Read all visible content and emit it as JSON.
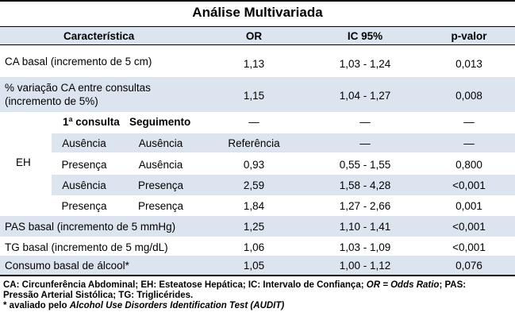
{
  "title": "Análise Multivariada",
  "headers": {
    "characteristic": "Característica",
    "or": "OR",
    "ic": "IC 95%",
    "pvalue": "p-valor"
  },
  "rows": {
    "ca_basal": {
      "label": "CA basal (incremento de 5 cm)",
      "or": "1,13",
      "ic": "1,03 - 1,24",
      "p": "0,013"
    },
    "ca_var": {
      "label_line1": "% variação CA entre consultas",
      "label_line2": "(incremento de 5%)",
      "or": "1,15",
      "ic": "1,04 - 1,27",
      "p": "0,008"
    },
    "eh": {
      "label": "EH",
      "sub_header_first": "1ª consulta",
      "sub_header_follow": "Seguimento",
      "header_or": "—",
      "header_ic": "—",
      "header_p": "—",
      "items": [
        {
          "first": "Ausência",
          "follow": "Ausência",
          "or": "Referência",
          "ic": "—",
          "p": "—"
        },
        {
          "first": "Presença",
          "follow": "Ausência",
          "or": "0,93",
          "ic": "0,55 - 1,55",
          "p": "0,800"
        },
        {
          "first": "Ausência",
          "follow": "Presença",
          "or": "2,59",
          "ic": "1,58 - 4,28",
          "p": "<0,001"
        },
        {
          "first": "Presença",
          "follow": "Presença",
          "or": "1,84",
          "ic": "1,27 - 2,66",
          "p": "0,001"
        }
      ]
    },
    "pas": {
      "label": "PAS basal (incremento de 5 mmHg)",
      "or": "1,25",
      "ic": "1,10 - 1,41",
      "p": "<0,001"
    },
    "tg": {
      "label": "TG basal (incremento de 5 mg/dL)",
      "or": "1,06",
      "ic": "1,03 - 1,09",
      "p": "<0,001"
    },
    "alcool": {
      "label": "Consumo basal de álcool*",
      "or": "1,05",
      "ic": "1,00 - 1,12",
      "p": "0,076"
    }
  },
  "footnote": {
    "line1_a": "CA: Circunferência Abdominal; EH: Esteatose Hepática; IC: Intervalo de Confiança; ",
    "line1_or": "OR = Odds Ratio",
    "line1_b": "; PAS:",
    "line2": "Pressão Arterial Sistólica; TG: Triglicérides.",
    "line3_a": "* avaliado pelo ",
    "line3_b": "Alcohol Use Disorders Identification Test (AUDIT)"
  }
}
